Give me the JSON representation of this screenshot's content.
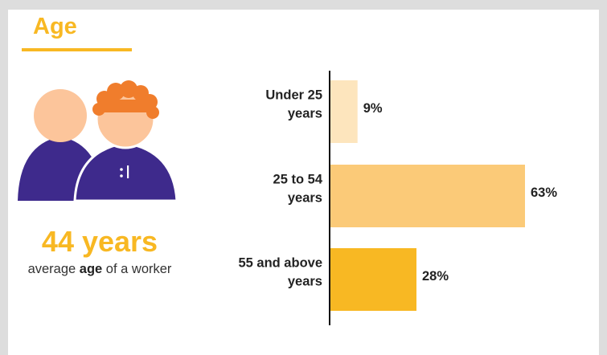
{
  "section": {
    "title": "Age",
    "average_value": "44 years",
    "caption_before": "average ",
    "caption_bold": "age",
    "caption_after": " of a worker"
  },
  "colors": {
    "accent": "#f8b823",
    "person_skin": "#fcc59b",
    "person_body": "#3e2a8c",
    "person_hair": "#f07d2c"
  },
  "icons": [
    "person-icon",
    "person-with-curly-hair-icon"
  ],
  "chart_data": {
    "type": "bar",
    "orientation": "horizontal",
    "categories": [
      [
        "Under 25",
        "years"
      ],
      [
        "25 to 54",
        "years"
      ],
      [
        "55 and above",
        "years"
      ]
    ],
    "values": [
      9,
      63,
      28
    ],
    "value_labels": [
      "9%",
      "63%",
      "28%"
    ],
    "bar_colors": [
      "#fde5bd",
      "#fbca78",
      "#f8b823"
    ],
    "xlim": [
      0,
      63
    ],
    "grid": false,
    "legend": "none",
    "title": "",
    "xlabel": "",
    "ylabel": ""
  }
}
